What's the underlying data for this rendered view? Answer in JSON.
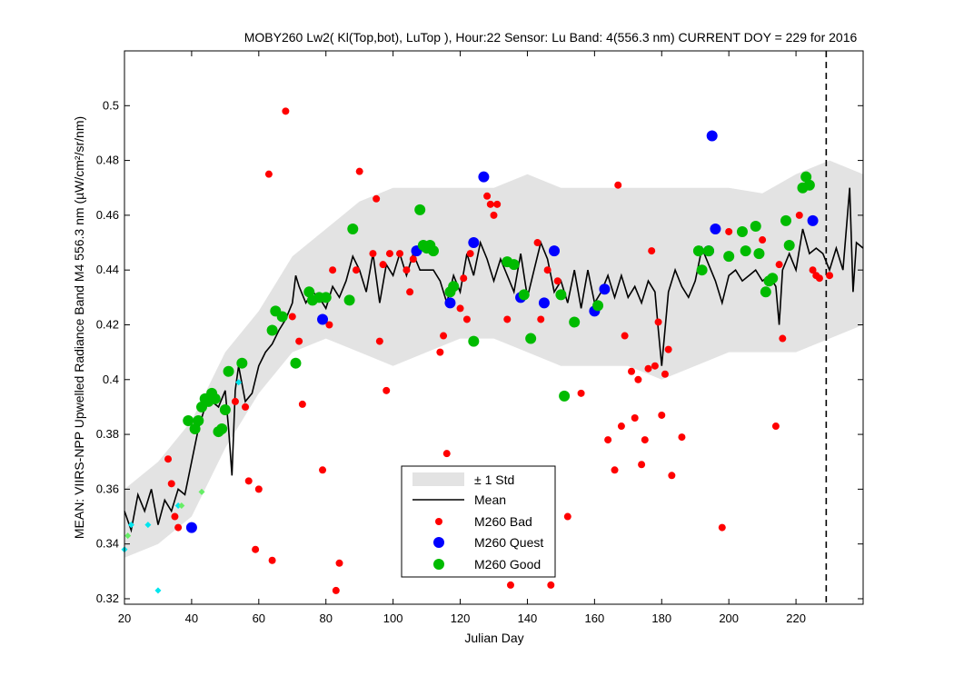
{
  "chart_data": {
    "type": "scatter",
    "title": "MOBY260   Lw2( Kl(Top,bot), LuTop ),   Hour:22 Sensor: Lu Band: 4(556.3 nm)   CURRENT DOY = 229 for 2016",
    "xlabel": "Julian Day",
    "ylabel": "MEAN: VIIRS-NPP Upwelled Radiance Band M4 556.3 nm (µW/cm²/sr/nm)",
    "xlim": [
      20,
      240
    ],
    "ylim": [
      0.318,
      0.52
    ],
    "xticks": [
      "20",
      "40",
      "60",
      "80",
      "100",
      "120",
      "140",
      "160",
      "180",
      "200",
      "220"
    ],
    "yticks": [
      "0.32",
      "0.34",
      "0.36",
      "0.38",
      "0.4",
      "0.42",
      "0.44",
      "0.46",
      "0.48",
      "0.5"
    ],
    "current_doy": 229,
    "grid": false,
    "legend_position": "bottom-center",
    "legend": [
      "± 1 Std",
      "Mean",
      "M260 Bad",
      "M260 Quest",
      "M260 Good"
    ],
    "colors": {
      "std_band": "#e3e3e3",
      "mean": "#000000",
      "bad": "#ff0000",
      "quest": "#0000ff",
      "good": "#00bb00",
      "cyan": "#00e5ee",
      "light_green": "#66ee66"
    },
    "mean_series": [
      [
        20,
        0.352
      ],
      [
        22,
        0.345
      ],
      [
        24,
        0.358
      ],
      [
        26,
        0.352
      ],
      [
        28,
        0.36
      ],
      [
        30,
        0.347
      ],
      [
        32,
        0.356
      ],
      [
        34,
        0.352
      ],
      [
        36,
        0.36
      ],
      [
        38,
        0.358
      ],
      [
        40,
        0.37
      ],
      [
        42,
        0.382
      ],
      [
        44,
        0.39
      ],
      [
        46,
        0.392
      ],
      [
        48,
        0.39
      ],
      [
        50,
        0.396
      ],
      [
        51,
        0.382
      ],
      [
        52,
        0.365
      ],
      [
        53,
        0.396
      ],
      [
        54,
        0.405
      ],
      [
        56,
        0.392
      ],
      [
        58,
        0.395
      ],
      [
        60,
        0.405
      ],
      [
        62,
        0.41
      ],
      [
        64,
        0.413
      ],
      [
        66,
        0.418
      ],
      [
        68,
        0.422
      ],
      [
        70,
        0.428
      ],
      [
        71,
        0.438
      ],
      [
        72,
        0.434
      ],
      [
        74,
        0.428
      ],
      [
        76,
        0.432
      ],
      [
        78,
        0.43
      ],
      [
        80,
        0.426
      ],
      [
        82,
        0.434
      ],
      [
        84,
        0.43
      ],
      [
        86,
        0.436
      ],
      [
        88,
        0.445
      ],
      [
        90,
        0.44
      ],
      [
        92,
        0.432
      ],
      [
        94,
        0.446
      ],
      [
        96,
        0.428
      ],
      [
        98,
        0.442
      ],
      [
        100,
        0.438
      ],
      [
        102,
        0.446
      ],
      [
        104,
        0.438
      ],
      [
        106,
        0.446
      ],
      [
        108,
        0.44
      ],
      [
        110,
        0.44
      ],
      [
        112,
        0.44
      ],
      [
        114,
        0.436
      ],
      [
        116,
        0.428
      ],
      [
        118,
        0.438
      ],
      [
        120,
        0.432
      ],
      [
        122,
        0.446
      ],
      [
        124,
        0.438
      ],
      [
        126,
        0.45
      ],
      [
        128,
        0.444
      ],
      [
        130,
        0.436
      ],
      [
        132,
        0.444
      ],
      [
        134,
        0.438
      ],
      [
        136,
        0.432
      ],
      [
        138,
        0.446
      ],
      [
        140,
        0.43
      ],
      [
        142,
        0.44
      ],
      [
        144,
        0.45
      ],
      [
        146,
        0.444
      ],
      [
        148,
        0.432
      ],
      [
        150,
        0.436
      ],
      [
        152,
        0.428
      ],
      [
        154,
        0.44
      ],
      [
        156,
        0.426
      ],
      [
        158,
        0.44
      ],
      [
        160,
        0.428
      ],
      [
        162,
        0.432
      ],
      [
        164,
        0.438
      ],
      [
        166,
        0.43
      ],
      [
        168,
        0.438
      ],
      [
        170,
        0.43
      ],
      [
        172,
        0.434
      ],
      [
        174,
        0.428
      ],
      [
        176,
        0.436
      ],
      [
        178,
        0.432
      ],
      [
        179,
        0.418
      ],
      [
        180,
        0.405
      ],
      [
        182,
        0.432
      ],
      [
        184,
        0.44
      ],
      [
        186,
        0.434
      ],
      [
        188,
        0.43
      ],
      [
        190,
        0.436
      ],
      [
        192,
        0.448
      ],
      [
        194,
        0.442
      ],
      [
        196,
        0.436
      ],
      [
        198,
        0.428
      ],
      [
        200,
        0.438
      ],
      [
        202,
        0.44
      ],
      [
        204,
        0.436
      ],
      [
        206,
        0.438
      ],
      [
        208,
        0.44
      ],
      [
        210,
        0.436
      ],
      [
        212,
        0.438
      ],
      [
        214,
        0.434
      ],
      [
        215,
        0.42
      ],
      [
        216,
        0.44
      ],
      [
        218,
        0.446
      ],
      [
        220,
        0.44
      ],
      [
        222,
        0.455
      ],
      [
        224,
        0.446
      ],
      [
        226,
        0.448
      ],
      [
        228,
        0.446
      ],
      [
        230,
        0.44
      ],
      [
        232,
        0.448
      ],
      [
        234,
        0.44
      ],
      [
        236,
        0.47
      ],
      [
        237,
        0.432
      ],
      [
        238,
        0.45
      ],
      [
        240,
        0.448
      ]
    ],
    "std_band": {
      "x": [
        20,
        30,
        40,
        50,
        60,
        70,
        80,
        90,
        100,
        110,
        120,
        130,
        140,
        150,
        160,
        170,
        180,
        190,
        200,
        210,
        220,
        230,
        240
      ],
      "upper": [
        0.36,
        0.37,
        0.385,
        0.41,
        0.425,
        0.445,
        0.455,
        0.465,
        0.47,
        0.47,
        0.47,
        0.47,
        0.475,
        0.47,
        0.47,
        0.47,
        0.47,
        0.47,
        0.47,
        0.468,
        0.475,
        0.48,
        0.475
      ],
      "lower": [
        0.335,
        0.34,
        0.35,
        0.375,
        0.395,
        0.41,
        0.415,
        0.41,
        0.405,
        0.41,
        0.415,
        0.415,
        0.41,
        0.405,
        0.405,
        0.405,
        0.4,
        0.405,
        0.41,
        0.41,
        0.41,
        0.415,
        0.42
      ]
    },
    "bad_points": [
      [
        33,
        0.371
      ],
      [
        34,
        0.362
      ],
      [
        35,
        0.35
      ],
      [
        36,
        0.346
      ],
      [
        53,
        0.392
      ],
      [
        56,
        0.39
      ],
      [
        57,
        0.363
      ],
      [
        59,
        0.338
      ],
      [
        60,
        0.36
      ],
      [
        63,
        0.475
      ],
      [
        64,
        0.334
      ],
      [
        68,
        0.498
      ],
      [
        70,
        0.423
      ],
      [
        72,
        0.414
      ],
      [
        73,
        0.391
      ],
      [
        79,
        0.367
      ],
      [
        81,
        0.42
      ],
      [
        82,
        0.44
      ],
      [
        83,
        0.323
      ],
      [
        84,
        0.333
      ],
      [
        89,
        0.44
      ],
      [
        90,
        0.476
      ],
      [
        94,
        0.446
      ],
      [
        95,
        0.466
      ],
      [
        96,
        0.414
      ],
      [
        97,
        0.442
      ],
      [
        98,
        0.396
      ],
      [
        99,
        0.446
      ],
      [
        102,
        0.446
      ],
      [
        104,
        0.44
      ],
      [
        105,
        0.432
      ],
      [
        106,
        0.444
      ],
      [
        114,
        0.41
      ],
      [
        115,
        0.416
      ],
      [
        116,
        0.373
      ],
      [
        120,
        0.426
      ],
      [
        121,
        0.437
      ],
      [
        122,
        0.422
      ],
      [
        123,
        0.446
      ],
      [
        128,
        0.467
      ],
      [
        129,
        0.464
      ],
      [
        130,
        0.46
      ],
      [
        131,
        0.464
      ],
      [
        134,
        0.422
      ],
      [
        135,
        0.325
      ],
      [
        143,
        0.45
      ],
      [
        144,
        0.422
      ],
      [
        146,
        0.44
      ],
      [
        147,
        0.325
      ],
      [
        149,
        0.436
      ],
      [
        152,
        0.35
      ],
      [
        156,
        0.395
      ],
      [
        164,
        0.378
      ],
      [
        166,
        0.367
      ],
      [
        167,
        0.471
      ],
      [
        168,
        0.383
      ],
      [
        169,
        0.416
      ],
      [
        171,
        0.403
      ],
      [
        172,
        0.386
      ],
      [
        173,
        0.4
      ],
      [
        174,
        0.369
      ],
      [
        175,
        0.378
      ],
      [
        176,
        0.404
      ],
      [
        177,
        0.447
      ],
      [
        178,
        0.405
      ],
      [
        179,
        0.421
      ],
      [
        180,
        0.387
      ],
      [
        181,
        0.402
      ],
      [
        182,
        0.411
      ],
      [
        183,
        0.365
      ],
      [
        186,
        0.379
      ],
      [
        198,
        0.346
      ],
      [
        200,
        0.454
      ],
      [
        210,
        0.451
      ],
      [
        214,
        0.383
      ],
      [
        215,
        0.442
      ],
      [
        216,
        0.415
      ],
      [
        221,
        0.46
      ],
      [
        225,
        0.44
      ],
      [
        226,
        0.438
      ],
      [
        227,
        0.437
      ],
      [
        230,
        0.438
      ]
    ],
    "quest_points": [
      [
        40,
        0.346
      ],
      [
        79,
        0.422
      ],
      [
        107,
        0.447
      ],
      [
        117,
        0.428
      ],
      [
        124,
        0.45
      ],
      [
        127,
        0.474
      ],
      [
        138,
        0.43
      ],
      [
        145,
        0.428
      ],
      [
        148,
        0.447
      ],
      [
        160,
        0.425
      ],
      [
        163,
        0.433
      ],
      [
        194,
        0.447
      ],
      [
        195,
        0.489
      ],
      [
        196,
        0.455
      ],
      [
        225,
        0.458
      ]
    ],
    "good_points": [
      [
        39,
        0.385
      ],
      [
        41,
        0.382
      ],
      [
        42,
        0.385
      ],
      [
        43,
        0.39
      ],
      [
        44,
        0.393
      ],
      [
        45,
        0.392
      ],
      [
        46,
        0.395
      ],
      [
        47,
        0.393
      ],
      [
        48,
        0.381
      ],
      [
        49,
        0.382
      ],
      [
        50,
        0.389
      ],
      [
        51,
        0.403
      ],
      [
        55,
        0.406
      ],
      [
        64,
        0.418
      ],
      [
        65,
        0.425
      ],
      [
        67,
        0.423
      ],
      [
        71,
        0.406
      ],
      [
        75,
        0.432
      ],
      [
        76,
        0.429
      ],
      [
        78,
        0.43
      ],
      [
        80,
        0.43
      ],
      [
        87,
        0.429
      ],
      [
        88,
        0.455
      ],
      [
        108,
        0.462
      ],
      [
        109,
        0.449
      ],
      [
        110,
        0.448
      ],
      [
        111,
        0.449
      ],
      [
        112,
        0.447
      ],
      [
        117,
        0.432
      ],
      [
        118,
        0.434
      ],
      [
        124,
        0.414
      ],
      [
        134,
        0.443
      ],
      [
        136,
        0.442
      ],
      [
        139,
        0.431
      ],
      [
        141,
        0.415
      ],
      [
        150,
        0.431
      ],
      [
        151,
        0.394
      ],
      [
        154,
        0.421
      ],
      [
        161,
        0.427
      ],
      [
        191,
        0.447
      ],
      [
        192,
        0.44
      ],
      [
        194,
        0.447
      ],
      [
        200,
        0.445
      ],
      [
        204,
        0.454
      ],
      [
        205,
        0.447
      ],
      [
        208,
        0.456
      ],
      [
        209,
        0.446
      ],
      [
        211,
        0.432
      ],
      [
        212,
        0.436
      ],
      [
        213,
        0.437
      ],
      [
        217,
        0.458
      ],
      [
        218,
        0.449
      ],
      [
        222,
        0.47
      ],
      [
        223,
        0.474
      ],
      [
        224,
        0.471
      ]
    ],
    "cyan_points": [
      [
        20,
        0.338
      ],
      [
        22,
        0.347
      ],
      [
        27,
        0.347
      ],
      [
        30,
        0.323
      ],
      [
        36,
        0.354
      ],
      [
        54,
        0.399
      ]
    ],
    "light_green_points": [
      [
        21,
        0.343
      ],
      [
        37,
        0.354
      ],
      [
        43,
        0.359
      ]
    ]
  }
}
